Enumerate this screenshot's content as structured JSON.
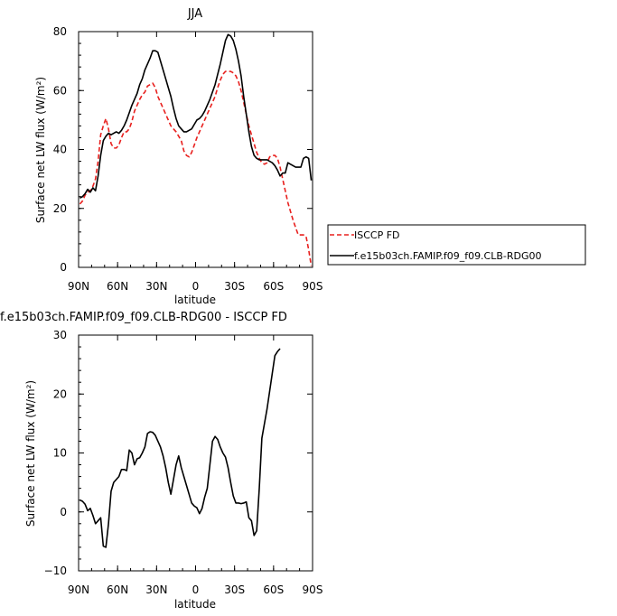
{
  "chart_data": [
    {
      "type": "line",
      "title": "JJA",
      "xlabel": "latitude",
      "ylabel": "Surface net LW flux (W/m²)",
      "xlim": [
        90,
        -90
      ],
      "ylim": [
        0,
        80
      ],
      "x_ticks": [
        90,
        60,
        30,
        0,
        -30,
        -60,
        -90
      ],
      "x_tick_labels": [
        "90N",
        "60N",
        "30N",
        "0",
        "30S",
        "60S",
        "90S"
      ],
      "y_ticks": [
        0,
        20,
        40,
        60,
        80
      ],
      "y_tick_labels": [
        "0",
        "20",
        "40",
        "60",
        "80"
      ],
      "legend_position": "right, outside plot",
      "series": [
        {
          "name": "ISCCP FD",
          "color": "#e8201e",
          "dash": "dashed",
          "points": [
            [
              89,
              21.5
            ],
            [
              87,
              22.5
            ],
            [
              85,
              24.5
            ],
            [
              83,
              25.5
            ],
            [
              81,
              26
            ],
            [
              79,
              27.5
            ],
            [
              77,
              30
            ],
            [
              75,
              36
            ],
            [
              73,
              45
            ],
            [
              71,
              48
            ],
            [
              69,
              50.5
            ],
            [
              67,
              47
            ],
            [
              65,
              42
            ],
            [
              63,
              40.5
            ],
            [
              61,
              40.5
            ],
            [
              59,
              41.5
            ],
            [
              57,
              44
            ],
            [
              55,
              46
            ],
            [
              53,
              46
            ],
            [
              51,
              47
            ],
            [
              49,
              49.5
            ],
            [
              47,
              53
            ],
            [
              45,
              55
            ],
            [
              43,
              57
            ],
            [
              41,
              58.5
            ],
            [
              39,
              59.5
            ],
            [
              37,
              61.5
            ],
            [
              35,
              62
            ],
            [
              33,
              62.5
            ],
            [
              31,
              61
            ],
            [
              29,
              58
            ],
            [
              27,
              56
            ],
            [
              25,
              54
            ],
            [
              23,
              52
            ],
            [
              21,
              50
            ],
            [
              19,
              48
            ],
            [
              17,
              47
            ],
            [
              15,
              46
            ],
            [
              13,
              44.5
            ],
            [
              11,
              43
            ],
            [
              9,
              39.5
            ],
            [
              7,
              38
            ],
            [
              5,
              37.5
            ],
            [
              3,
              39
            ],
            [
              1,
              41.5
            ],
            [
              -1,
              44
            ],
            [
              -3,
              46
            ],
            [
              -5,
              48
            ],
            [
              -7,
              50
            ],
            [
              -9,
              52
            ],
            [
              -11,
              54
            ],
            [
              -13,
              56
            ],
            [
              -15,
              58
            ],
            [
              -17,
              61
            ],
            [
              -19,
              63.5
            ],
            [
              -21,
              65.5
            ],
            [
              -23,
              66.5
            ],
            [
              -25,
              66.5
            ],
            [
              -27,
              66.5
            ],
            [
              -29,
              66
            ],
            [
              -31,
              65
            ],
            [
              -33,
              63
            ],
            [
              -35,
              60
            ],
            [
              -37,
              56
            ],
            [
              -39,
              52
            ],
            [
              -41,
              48
            ],
            [
              -43,
              45
            ],
            [
              -45,
              42
            ],
            [
              -47,
              39
            ],
            [
              -49,
              37
            ],
            [
              -51,
              35.5
            ],
            [
              -53,
              35
            ],
            [
              -55,
              35.5
            ],
            [
              -57,
              37.5
            ],
            [
              -59,
              38
            ],
            [
              -61,
              38
            ],
            [
              -63,
              37
            ],
            [
              -65,
              34
            ],
            [
              -67,
              30
            ],
            [
              -69,
              26
            ],
            [
              -71,
              22
            ],
            [
              -73,
              19
            ],
            [
              -75,
              16
            ],
            [
              -77,
              13.5
            ],
            [
              -79,
              11
            ],
            [
              -81,
              11
            ],
            [
              -83,
              11
            ],
            [
              -85,
              10.5
            ],
            [
              -87,
              6
            ],
            [
              -89,
              0.5
            ]
          ]
        },
        {
          "name": "f.e15b03ch.FAMIP.f09_f09.CLB-RDG00",
          "color": "#000000",
          "dash": "solid",
          "points": [
            [
              89,
              23.5
            ],
            [
              87,
              24
            ],
            [
              85,
              25
            ],
            [
              83,
              26.5
            ],
            [
              81,
              25.5
            ],
            [
              79,
              27
            ],
            [
              77,
              26
            ],
            [
              75,
              31
            ],
            [
              73,
              38
            ],
            [
              71,
              43
            ],
            [
              69,
              44.5
            ],
            [
              67,
              45.5
            ],
            [
              65,
              45
            ],
            [
              63,
              45.5
            ],
            [
              61,
              46
            ],
            [
              59,
              45.5
            ],
            [
              57,
              46.5
            ],
            [
              55,
              48
            ],
            [
              53,
              50
            ],
            [
              51,
              52.5
            ],
            [
              49,
              55
            ],
            [
              47,
              57
            ],
            [
              45,
              59
            ],
            [
              43,
              62
            ],
            [
              41,
              64
            ],
            [
              39,
              67
            ],
            [
              37,
              69
            ],
            [
              35,
              71
            ],
            [
              33,
              73.5
            ],
            [
              31,
              73.5
            ],
            [
              29,
              73
            ],
            [
              27,
              70
            ],
            [
              25,
              67
            ],
            [
              23,
              64
            ],
            [
              21,
              61
            ],
            [
              19,
              58
            ],
            [
              17,
              54
            ],
            [
              15,
              50.5
            ],
            [
              13,
              48
            ],
            [
              11,
              47
            ],
            [
              9,
              46
            ],
            [
              7,
              46
            ],
            [
              5,
              46.5
            ],
            [
              3,
              47
            ],
            [
              1,
              48.5
            ],
            [
              -1,
              50
            ],
            [
              -3,
              50.5
            ],
            [
              -5,
              51.5
            ],
            [
              -7,
              53
            ],
            [
              -9,
              55
            ],
            [
              -11,
              57
            ],
            [
              -13,
              59.5
            ],
            [
              -15,
              62
            ],
            [
              -17,
              65.5
            ],
            [
              -19,
              69
            ],
            [
              -21,
              73
            ],
            [
              -23,
              77
            ],
            [
              -25,
              79
            ],
            [
              -27,
              78.5
            ],
            [
              -29,
              77
            ],
            [
              -31,
              74
            ],
            [
              -33,
              70
            ],
            [
              -35,
              65
            ],
            [
              -37,
              58
            ],
            [
              -39,
              52
            ],
            [
              -41,
              46
            ],
            [
              -43,
              41
            ],
            [
              -45,
              38
            ],
            [
              -47,
              37
            ],
            [
              -49,
              36.5
            ],
            [
              -51,
              36.5
            ],
            [
              -53,
              36.5
            ],
            [
              -55,
              36.5
            ],
            [
              -57,
              36
            ],
            [
              -59,
              35.5
            ],
            [
              -61,
              34.5
            ],
            [
              -63,
              33
            ],
            [
              -65,
              31
            ],
            [
              -67,
              32
            ],
            [
              -69,
              32
            ],
            [
              -71,
              35.5
            ],
            [
              -73,
              35
            ],
            [
              -75,
              34.5
            ],
            [
              -77,
              34
            ],
            [
              -79,
              34
            ],
            [
              -81,
              34
            ],
            [
              -83,
              37
            ],
            [
              -85,
              37.5
            ],
            [
              -87,
              37
            ],
            [
              -89,
              29.5
            ]
          ]
        }
      ]
    },
    {
      "type": "line",
      "title": "f.e15b03ch.FAMIP.f09_f09.CLB-RDG00 - ISCCP FD",
      "xlabel": "latitude",
      "ylabel": "Surface net LW flux (W/m²)",
      "xlim": [
        90,
        -90
      ],
      "ylim": [
        -10,
        30
      ],
      "x_ticks": [
        90,
        60,
        30,
        0,
        -30,
        -60,
        -90
      ],
      "x_tick_labels": [
        "90N",
        "60N",
        "30N",
        "0",
        "30S",
        "60S",
        "90S"
      ],
      "y_ticks": [
        -10,
        0,
        10,
        20,
        30
      ],
      "y_tick_labels": [
        "−10",
        "0",
        "10",
        "20",
        "30"
      ],
      "series": [
        {
          "color": "#000000",
          "dash": "solid",
          "points": [
            [
              89,
              2
            ],
            [
              87,
              1.8
            ],
            [
              85,
              1.3
            ],
            [
              83,
              0.2
            ],
            [
              81,
              0.6
            ],
            [
              79,
              -0.6
            ],
            [
              77,
              -2
            ],
            [
              75,
              -1.5
            ],
            [
              73,
              -1
            ],
            [
              71,
              -5.8
            ],
            [
              69,
              -6
            ],
            [
              67,
              -2
            ],
            [
              65,
              3.5
            ],
            [
              63,
              5
            ],
            [
              61,
              5.5
            ],
            [
              59,
              6
            ],
            [
              57,
              7.2
            ],
            [
              55,
              7.2
            ],
            [
              53,
              7
            ],
            [
              51,
              10.5
            ],
            [
              49,
              10
            ],
            [
              47,
              8
            ],
            [
              45,
              9
            ],
            [
              43,
              9.2
            ],
            [
              41,
              10
            ],
            [
              39,
              11
            ],
            [
              37,
              13.3
            ],
            [
              35,
              13.6
            ],
            [
              33,
              13.5
            ],
            [
              31,
              13
            ],
            [
              29,
              12
            ],
            [
              27,
              11
            ],
            [
              25,
              9.5
            ],
            [
              23,
              7.5
            ],
            [
              21,
              5
            ],
            [
              19,
              3
            ],
            [
              17,
              5.5
            ],
            [
              15,
              8
            ],
            [
              13,
              9.5
            ],
            [
              11,
              7.5
            ],
            [
              9,
              6
            ],
            [
              7,
              4.5
            ],
            [
              5,
              3
            ],
            [
              3,
              1.5
            ],
            [
              1,
              1
            ],
            [
              -1,
              0.7
            ],
            [
              -3,
              -0.3
            ],
            [
              -5,
              0.6
            ],
            [
              -7,
              2.5
            ],
            [
              -9,
              4
            ],
            [
              -11,
              8
            ],
            [
              -13,
              12
            ],
            [
              -15,
              12.8
            ],
            [
              -17,
              12.3
            ],
            [
              -19,
              11
            ],
            [
              -21,
              10
            ],
            [
              -23,
              9.3
            ],
            [
              -25,
              7.5
            ],
            [
              -27,
              5
            ],
            [
              -29,
              2.7
            ],
            [
              -31,
              1.5
            ],
            [
              -33,
              1.5
            ],
            [
              -35,
              1.4
            ],
            [
              -37,
              1.5
            ],
            [
              -39,
              1.7
            ],
            [
              -41,
              -1
            ],
            [
              -43,
              -1.5
            ],
            [
              -45,
              -4
            ],
            [
              -47,
              -3.2
            ],
            [
              -49,
              4
            ],
            [
              -51,
              12.5
            ],
            [
              -53,
              15
            ],
            [
              -55,
              17.5
            ],
            [
              -57,
              20.5
            ],
            [
              -59,
              23.5
            ],
            [
              -61,
              26.5
            ],
            [
              -63,
              27.2
            ],
            [
              -65,
              27.7
            ]
          ]
        }
      ]
    }
  ]
}
